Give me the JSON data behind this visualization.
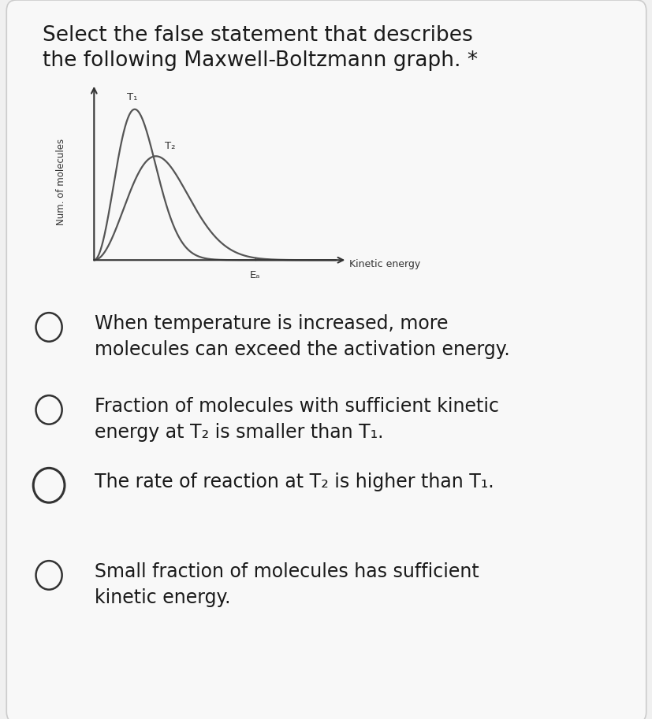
{
  "title_line1": "Select the false statement that describes",
  "title_line2": "the following Maxwell-Boltzmann graph. *",
  "ylabel": "Num. of molecules",
  "xlabel": "Kinetic energy",
  "ea_label": "Eₐ",
  "t1_label": "T₁",
  "t2_label": "T₂",
  "curve_color": "#555555",
  "hatch_color": "#888888",
  "background_color": "#f0f0f0",
  "title_fontsize": 19,
  "option_fontsize": 17,
  "options": [
    "When temperature is increased, more\nmolecules can exceed the activation energy.",
    "Fraction of molecules with sufficient kinetic\nenergy at T₂ is smaller than T₁.",
    "The rate of reaction at T₂ is higher than T₁.",
    "Small fraction of molecules has sufficient\nkinetic energy."
  ]
}
